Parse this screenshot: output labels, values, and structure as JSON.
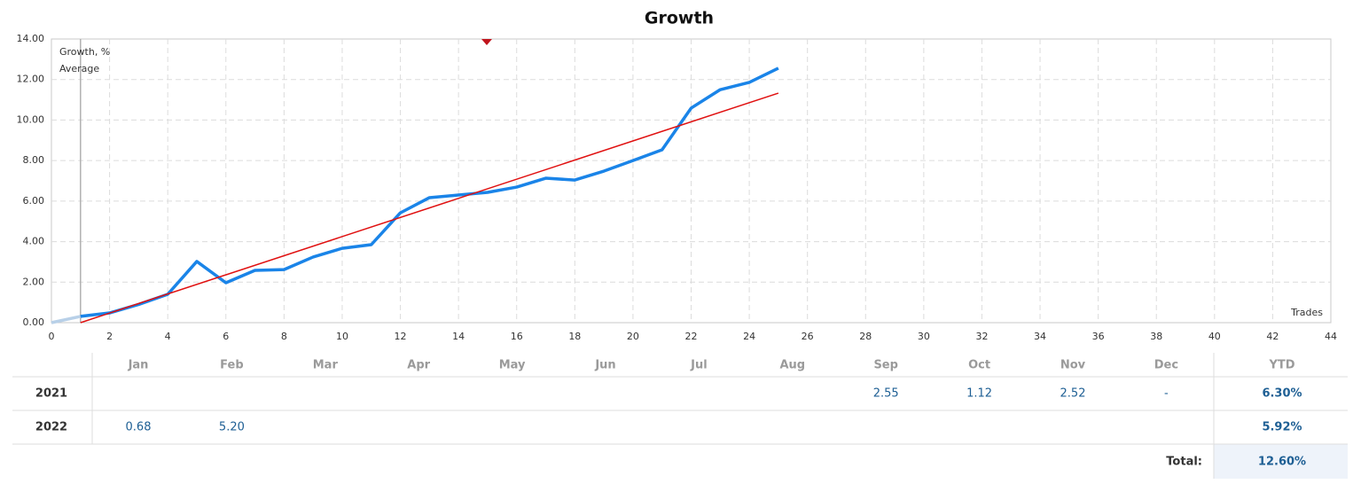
{
  "chart_data": {
    "type": "line",
    "title": "Growth",
    "x_label": "Trades",
    "series": [
      {
        "name": "Growth, %",
        "color": "#1a84e8",
        "x": [
          0,
          1,
          2,
          3,
          4,
          5,
          6,
          7,
          8,
          9,
          10,
          11,
          12,
          13,
          14,
          15,
          16,
          17,
          18,
          19,
          20,
          21,
          22,
          23,
          24,
          25
        ],
        "values": [
          0,
          0.31,
          0.48,
          0.9,
          1.4,
          3.02,
          1.97,
          2.58,
          2.62,
          3.24,
          3.67,
          3.85,
          5.42,
          6.17,
          6.3,
          6.43,
          6.69,
          7.13,
          7.04,
          7.48,
          8.0,
          8.53,
          10.59,
          11.5,
          11.86,
          12.56
        ]
      },
      {
        "name": "Average",
        "color": "#e01010",
        "x": [
          1,
          25
        ],
        "values": [
          0,
          11.33
        ]
      }
    ],
    "xlim": [
      0,
      44
    ],
    "xticks": [
      0,
      2,
      4,
      6,
      8,
      10,
      12,
      14,
      16,
      18,
      20,
      22,
      24,
      26,
      28,
      30,
      32,
      34,
      36,
      38,
      40,
      42,
      44
    ],
    "ylim": [
      0,
      14
    ],
    "yticks": [
      {
        "value": 0,
        "label": "0.00"
      },
      {
        "value": 2,
        "label": "2.00"
      },
      {
        "value": 4,
        "label": "4.00"
      },
      {
        "value": 6,
        "label": "6.00"
      },
      {
        "value": 8,
        "label": "8.00"
      },
      {
        "value": 10,
        "label": "10.00"
      },
      {
        "value": 12,
        "label": "12.00"
      },
      {
        "value": 14,
        "label": "14.00"
      }
    ],
    "grid": true
  },
  "table": {
    "columns": [
      "Jan",
      "Feb",
      "Mar",
      "Apr",
      "May",
      "Jun",
      "Jul",
      "Aug",
      "Sep",
      "Oct",
      "Nov",
      "Dec",
      "YTD"
    ],
    "rows": [
      {
        "year": "2021",
        "cells": [
          null,
          null,
          null,
          null,
          null,
          null,
          null,
          null,
          "2.55",
          "1.12",
          "2.52",
          "-",
          "6.30%"
        ]
      },
      {
        "year": "2022",
        "cells": [
          "0.68",
          "5.20",
          null,
          null,
          null,
          null,
          null,
          null,
          null,
          null,
          null,
          null,
          "5.92%"
        ]
      }
    ],
    "total_label": "Total:",
    "total": "12.60%"
  }
}
